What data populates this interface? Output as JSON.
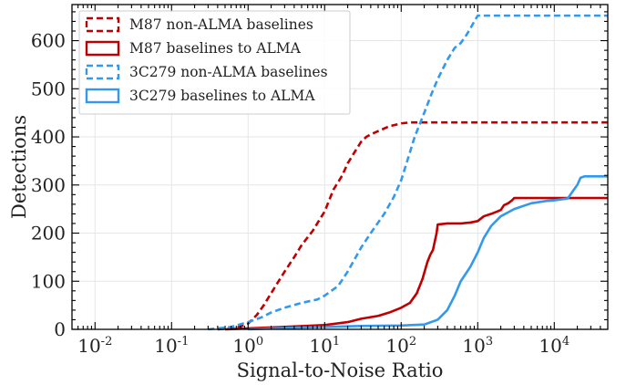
{
  "chart_data": {
    "type": "line",
    "title": "",
    "xlabel": "Signal-to-Noise Ratio",
    "ylabel": "Detections",
    "xscale": "log",
    "xlim": [
      0.005,
      50000
    ],
    "ylim": [
      0,
      675
    ],
    "x_major_ticks": [
      0.01,
      0.1,
      1,
      10,
      100,
      1000,
      10000
    ],
    "x_tick_labels": [
      {
        "base": "10",
        "exp": "-2"
      },
      {
        "base": "10",
        "exp": "-1"
      },
      {
        "base": "10",
        "exp": "0"
      },
      {
        "base": "10",
        "exp": "1"
      },
      {
        "base": "10",
        "exp": "2"
      },
      {
        "base": "10",
        "exp": "3"
      },
      {
        "base": "10",
        "exp": "4"
      }
    ],
    "y_ticks": [
      0,
      100,
      200,
      300,
      400,
      500,
      600
    ],
    "y_tick_labels": [
      "0",
      "100",
      "200",
      "300",
      "400",
      "500",
      "600"
    ],
    "grid": true,
    "legend_position": "top-left",
    "series": [
      {
        "name": "M87 non-ALMA baselines",
        "color": "#c00000",
        "style": "dashed",
        "points": [
          [
            0.4,
            0
          ],
          [
            0.7,
            3
          ],
          [
            1,
            12
          ],
          [
            1.3,
            30
          ],
          [
            1.6,
            50
          ],
          [
            2,
            75
          ],
          [
            2.5,
            100
          ],
          [
            3,
            120
          ],
          [
            4,
            150
          ],
          [
            5,
            175
          ],
          [
            7,
            205
          ],
          [
            10,
            245
          ],
          [
            13,
            290
          ],
          [
            17,
            320
          ],
          [
            20,
            345
          ],
          [
            25,
            370
          ],
          [
            30,
            390
          ],
          [
            35,
            400
          ],
          [
            40,
            405
          ],
          [
            50,
            412
          ],
          [
            70,
            422
          ],
          [
            100,
            428
          ],
          [
            130,
            430
          ],
          [
            200,
            430
          ],
          [
            1000,
            430
          ],
          [
            50000,
            430
          ]
        ]
      },
      {
        "name": "M87 baselines to ALMA",
        "color": "#c00000",
        "style": "solid",
        "points": [
          [
            0.5,
            0
          ],
          [
            1,
            2
          ],
          [
            3,
            5
          ],
          [
            10,
            9
          ],
          [
            20,
            15
          ],
          [
            30,
            22
          ],
          [
            50,
            28
          ],
          [
            70,
            35
          ],
          [
            100,
            45
          ],
          [
            130,
            55
          ],
          [
            160,
            75
          ],
          [
            190,
            105
          ],
          [
            220,
            140
          ],
          [
            240,
            155
          ],
          [
            260,
            165
          ],
          [
            290,
            200
          ],
          [
            300,
            218
          ],
          [
            400,
            220
          ],
          [
            600,
            220
          ],
          [
            800,
            222
          ],
          [
            1000,
            225
          ],
          [
            1200,
            235
          ],
          [
            1500,
            240
          ],
          [
            1800,
            245
          ],
          [
            2000,
            248
          ],
          [
            2200,
            258
          ],
          [
            2500,
            262
          ],
          [
            2800,
            268
          ],
          [
            3000,
            273
          ],
          [
            5000,
            273
          ],
          [
            10000,
            273
          ],
          [
            50000,
            273
          ]
        ]
      },
      {
        "name": "3C279 non-ALMA baselines",
        "color": "#3399ee",
        "style": "dashed",
        "points": [
          [
            0.3,
            0
          ],
          [
            0.6,
            5
          ],
          [
            1,
            15
          ],
          [
            1.5,
            25
          ],
          [
            2,
            35
          ],
          [
            3,
            45
          ],
          [
            5,
            55
          ],
          [
            8,
            62
          ],
          [
            10,
            70
          ],
          [
            15,
            90
          ],
          [
            20,
            120
          ],
          [
            30,
            170
          ],
          [
            40,
            200
          ],
          [
            60,
            240
          ],
          [
            80,
            275
          ],
          [
            100,
            310
          ],
          [
            120,
            350
          ],
          [
            150,
            400
          ],
          [
            200,
            450
          ],
          [
            250,
            490
          ],
          [
            300,
            520
          ],
          [
            400,
            560
          ],
          [
            500,
            585
          ],
          [
            600,
            595
          ],
          [
            700,
            610
          ],
          [
            800,
            625
          ],
          [
            900,
            640
          ],
          [
            1000,
            652
          ],
          [
            3000,
            652
          ],
          [
            10000,
            652
          ],
          [
            50000,
            652
          ]
        ]
      },
      {
        "name": "3C279 baselines to ALMA",
        "color": "#3399ee",
        "style": "solid",
        "points": [
          [
            1,
            0
          ],
          [
            3,
            3
          ],
          [
            10,
            5
          ],
          [
            30,
            7
          ],
          [
            100,
            8
          ],
          [
            200,
            10
          ],
          [
            300,
            20
          ],
          [
            400,
            40
          ],
          [
            500,
            70
          ],
          [
            600,
            100
          ],
          [
            800,
            130
          ],
          [
            1000,
            160
          ],
          [
            1200,
            190
          ],
          [
            1500,
            215
          ],
          [
            2000,
            235
          ],
          [
            3000,
            250
          ],
          [
            5000,
            262
          ],
          [
            8000,
            267
          ],
          [
            10000,
            268
          ],
          [
            15000,
            272
          ],
          [
            18000,
            290
          ],
          [
            20000,
            300
          ],
          [
            22000,
            315
          ],
          [
            25000,
            318
          ],
          [
            50000,
            318
          ]
        ]
      }
    ]
  }
}
